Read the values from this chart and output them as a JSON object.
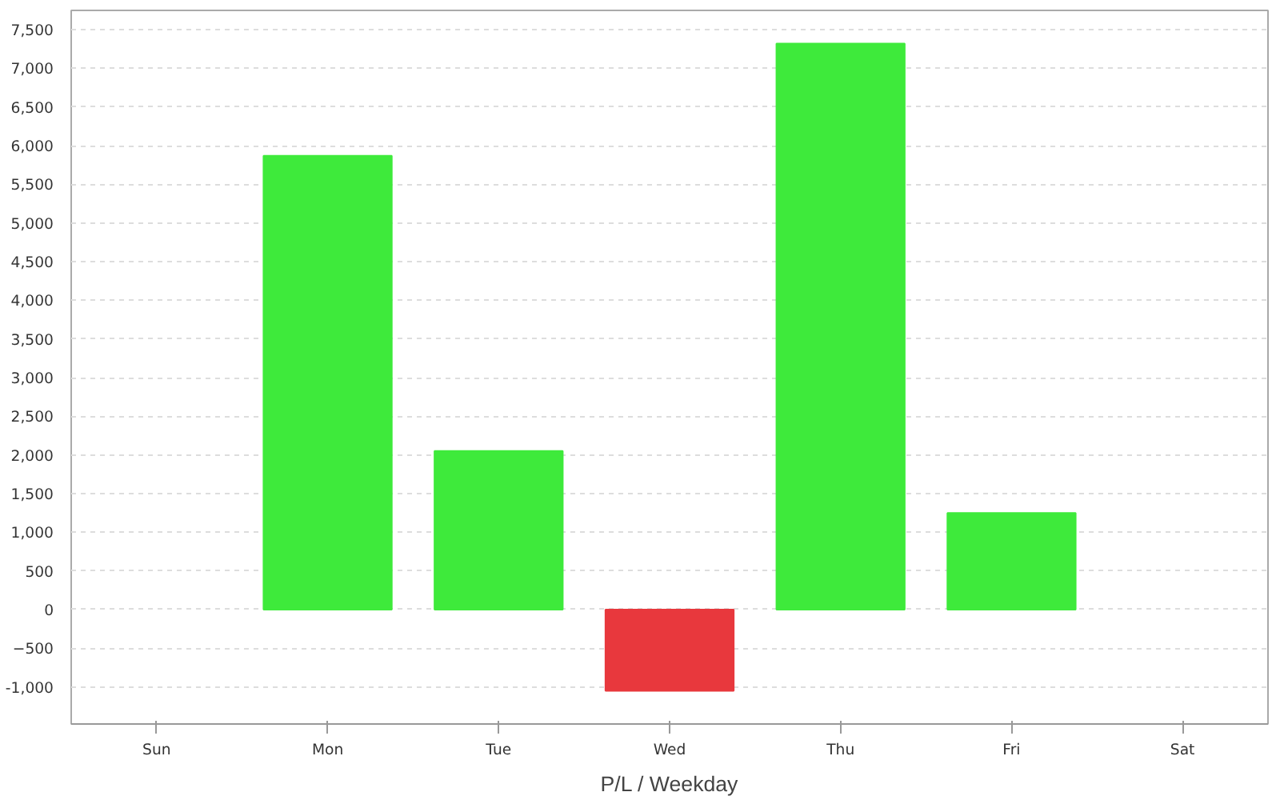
{
  "chart_data": {
    "type": "bar",
    "xlabel": "P/L / Weekday",
    "categories": [
      "Sun",
      "Mon",
      "Tue",
      "Wed",
      "Thu",
      "Fri",
      "Sat"
    ],
    "values": [
      null,
      5870,
      2050,
      -1050,
      7320,
      1250,
      null
    ],
    "colors": [
      "#3eea3b",
      "#3eea3b",
      "#3eea3b",
      "#e8383d",
      "#3eea3b",
      "#3eea3b",
      "#3eea3b"
    ],
    "ylim": [
      -1480,
      7750
    ],
    "yticks": [
      {
        "value": -1000,
        "label": "-1,000"
      },
      -500,
      0,
      500,
      {
        "value": 1000,
        "label": "1,000"
      },
      {
        "value": 1500,
        "label": "1,500"
      },
      {
        "value": 2000,
        "label": "2,000"
      },
      {
        "value": 2500,
        "label": "2,500"
      },
      {
        "value": 3000,
        "label": "3,000"
      },
      {
        "value": 3500,
        "label": "3,500"
      },
      {
        "value": 4000,
        "label": "4,000"
      },
      {
        "value": 4500,
        "label": "4,500"
      },
      {
        "value": 5000,
        "label": "5,000"
      },
      {
        "value": 5500,
        "label": "5,500"
      },
      {
        "value": 6000,
        "label": "6,000"
      },
      {
        "value": 6500,
        "label": "6,500"
      },
      {
        "value": 7000,
        "label": "7,000"
      },
      {
        "value": 7500,
        "label": "7,500"
      }
    ],
    "grid": "y"
  }
}
